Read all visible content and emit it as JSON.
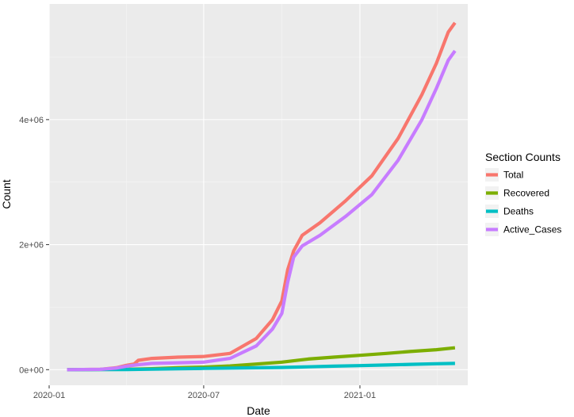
{
  "chart_data": {
    "type": "line",
    "title": "",
    "xlabel": "Date",
    "ylabel": "Count",
    "x_ticks": [
      "2020-01",
      "2020-07",
      "2021-01"
    ],
    "y_ticks": [
      "0e+00",
      "2e+06",
      "4e+06"
    ],
    "xlim": [
      "2020-01-01",
      "2021-05-08"
    ],
    "ylim": [
      -250000,
      5850000
    ],
    "grid": true,
    "legend_title": "Section Counts",
    "legend_position": "right",
    "series": [
      {
        "name": "Total",
        "color": "#F8766D",
        "points": [
          [
            "2020-01-22",
            0
          ],
          [
            "2020-03-01",
            5000
          ],
          [
            "2020-03-20",
            30000
          ],
          [
            "2020-04-01",
            70000
          ],
          [
            "2020-04-10",
            90000
          ],
          [
            "2020-04-15",
            150000
          ],
          [
            "2020-05-01",
            180000
          ],
          [
            "2020-06-01",
            200000
          ],
          [
            "2020-07-01",
            210000
          ],
          [
            "2020-08-01",
            260000
          ],
          [
            "2020-09-01",
            500000
          ],
          [
            "2020-09-20",
            800000
          ],
          [
            "2020-10-01",
            1100000
          ],
          [
            "2020-10-08",
            1600000
          ],
          [
            "2020-10-15",
            1900000
          ],
          [
            "2020-10-25",
            2150000
          ],
          [
            "2020-11-15",
            2350000
          ],
          [
            "2020-12-15",
            2700000
          ],
          [
            "2021-01-15",
            3100000
          ],
          [
            "2021-02-15",
            3700000
          ],
          [
            "2021-03-15",
            4400000
          ],
          [
            "2021-04-01",
            4900000
          ],
          [
            "2021-04-15",
            5400000
          ],
          [
            "2021-04-23",
            5550000
          ]
        ]
      },
      {
        "name": "Recovered",
        "color": "#7CAE00",
        "points": [
          [
            "2020-01-22",
            0
          ],
          [
            "2020-04-01",
            5000
          ],
          [
            "2020-05-01",
            15000
          ],
          [
            "2020-06-01",
            30000
          ],
          [
            "2020-07-01",
            40000
          ],
          [
            "2020-08-01",
            60000
          ],
          [
            "2020-09-01",
            90000
          ],
          [
            "2020-10-01",
            120000
          ],
          [
            "2020-11-01",
            170000
          ],
          [
            "2020-12-01",
            200000
          ],
          [
            "2021-01-01",
            230000
          ],
          [
            "2021-02-01",
            260000
          ],
          [
            "2021-03-01",
            290000
          ],
          [
            "2021-04-01",
            320000
          ],
          [
            "2021-04-23",
            350000
          ]
        ]
      },
      {
        "name": "Deaths",
        "color": "#00BFC4",
        "points": [
          [
            "2020-01-22",
            0
          ],
          [
            "2020-04-01",
            2000
          ],
          [
            "2020-05-01",
            8000
          ],
          [
            "2020-06-01",
            15000
          ],
          [
            "2020-07-01",
            20000
          ],
          [
            "2020-08-01",
            25000
          ],
          [
            "2020-09-01",
            30000
          ],
          [
            "2020-10-01",
            35000
          ],
          [
            "2020-11-01",
            45000
          ],
          [
            "2020-12-01",
            55000
          ],
          [
            "2021-01-01",
            65000
          ],
          [
            "2021-02-01",
            75000
          ],
          [
            "2021-03-01",
            85000
          ],
          [
            "2021-04-01",
            95000
          ],
          [
            "2021-04-23",
            100000
          ]
        ]
      },
      {
        "name": "Active_Cases",
        "color": "#C77CFF",
        "points": [
          [
            "2020-01-22",
            0
          ],
          [
            "2020-03-01",
            5000
          ],
          [
            "2020-03-20",
            25000
          ],
          [
            "2020-04-01",
            55000
          ],
          [
            "2020-04-15",
            80000
          ],
          [
            "2020-05-01",
            100000
          ],
          [
            "2020-06-01",
            110000
          ],
          [
            "2020-07-01",
            120000
          ],
          [
            "2020-08-01",
            180000
          ],
          [
            "2020-09-01",
            380000
          ],
          [
            "2020-09-20",
            650000
          ],
          [
            "2020-10-01",
            900000
          ],
          [
            "2020-10-08",
            1400000
          ],
          [
            "2020-10-15",
            1800000
          ],
          [
            "2020-10-25",
            1980000
          ],
          [
            "2020-11-15",
            2150000
          ],
          [
            "2020-12-15",
            2450000
          ],
          [
            "2021-01-15",
            2800000
          ],
          [
            "2021-02-15",
            3350000
          ],
          [
            "2021-03-15",
            4000000
          ],
          [
            "2021-04-01",
            4500000
          ],
          [
            "2021-04-15",
            4950000
          ],
          [
            "2021-04-23",
            5100000
          ]
        ]
      }
    ]
  }
}
